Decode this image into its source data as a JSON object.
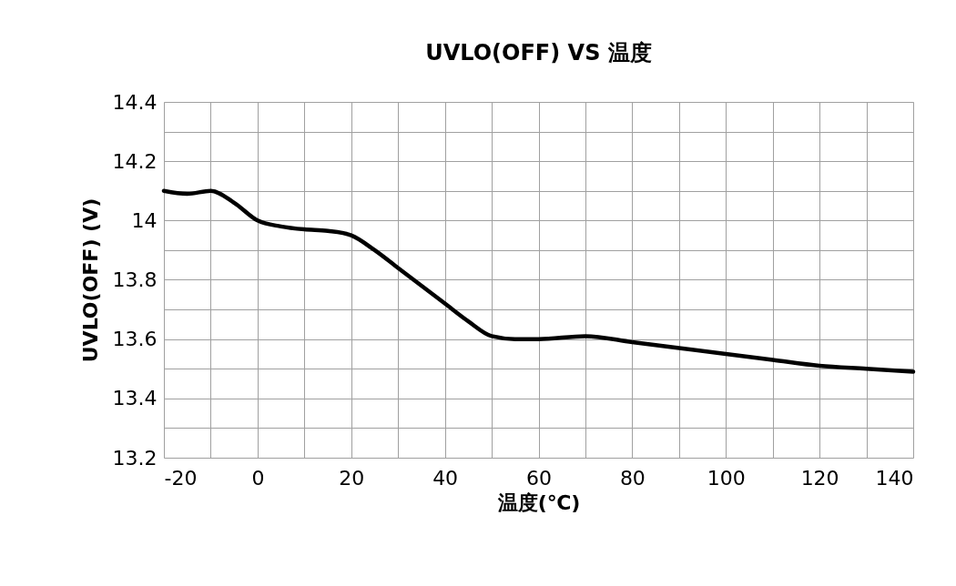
{
  "chart_data": {
    "type": "line",
    "title": "UVLO(OFF) VS 温度",
    "xlabel": "温度(℃)",
    "ylabel": "UVLO(OFF) (V)",
    "x": [
      -20,
      -15,
      -10,
      -5,
      0,
      5,
      10,
      15,
      20,
      25,
      30,
      35,
      40,
      45,
      50,
      55,
      60,
      70,
      80,
      90,
      100,
      110,
      120,
      130,
      140
    ],
    "series": [
      {
        "color": "#000000",
        "values": [
          14.1,
          14.09,
          14.1,
          14.06,
          14.0,
          13.98,
          13.97,
          13.965,
          13.95,
          13.9,
          13.84,
          13.78,
          13.72,
          13.66,
          13.61,
          13.6,
          13.6,
          13.61,
          13.59,
          13.57,
          13.55,
          13.53,
          13.51,
          13.5,
          13.49
        ]
      }
    ],
    "xlim": [
      -20,
      140
    ],
    "xticks": [
      -20,
      {
        "value": -10,
        "label": null
      },
      0,
      {
        "value": 10,
        "label": null
      },
      20,
      {
        "value": 30,
        "label": null
      },
      40,
      {
        "value": 50,
        "label": null
      },
      60,
      {
        "value": 70,
        "label": null
      },
      80,
      {
        "value": 90,
        "label": null
      },
      100,
      {
        "value": 110,
        "label": null
      },
      120,
      {
        "value": 130,
        "label": null
      },
      140
    ],
    "ylim": [
      13.2,
      14.4
    ],
    "yticks": [
      13.2,
      {
        "value": 13.3,
        "label": null
      },
      13.4,
      {
        "value": 13.5,
        "label": null
      },
      13.6,
      {
        "value": 13.7,
        "label": null
      },
      13.8,
      {
        "value": 13.9,
        "label": null
      },
      14,
      {
        "value": 14.1,
        "label": null
      },
      14.2,
      {
        "value": 14.3,
        "label": null
      },
      14.4
    ],
    "grid": true,
    "line_style": "solid",
    "marker": "none"
  }
}
